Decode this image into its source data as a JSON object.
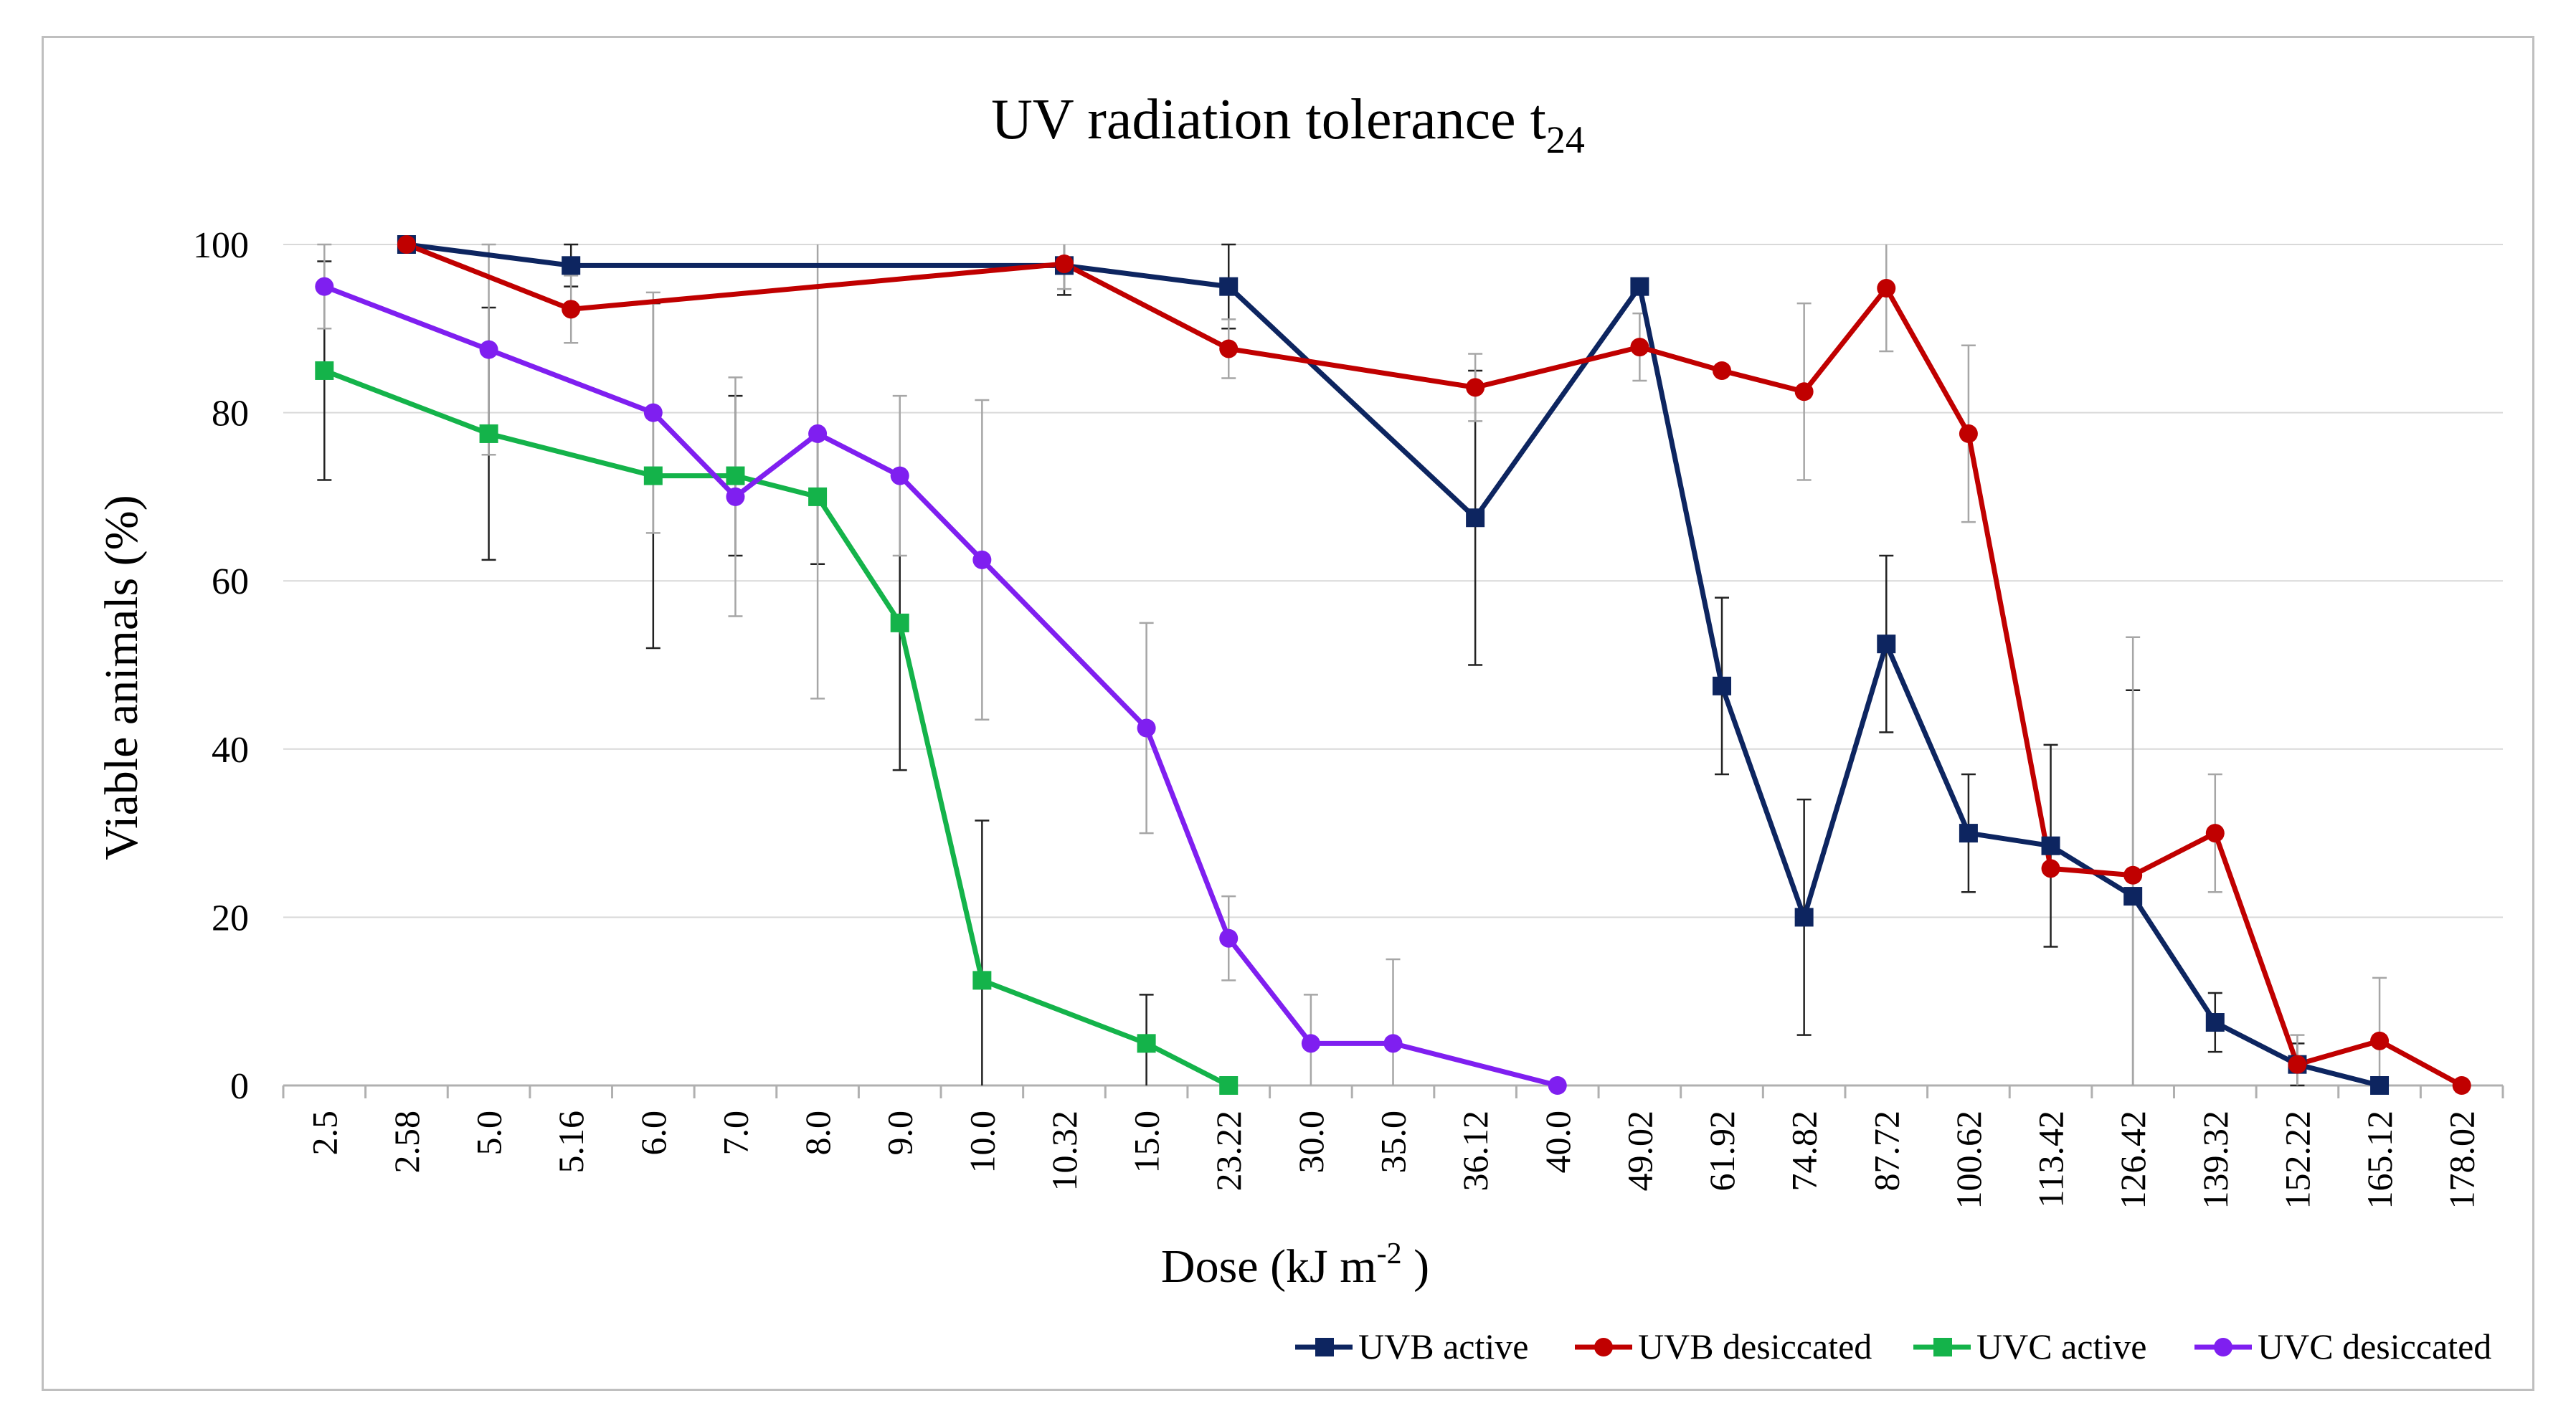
{
  "chart_data": {
    "type": "line",
    "title": "UV radiation tolerance t",
    "title_subscript": "24",
    "xlabel": "Dose (kJ m",
    "xlabel_superscript": "-2",
    "xlabel_suffix": " )",
    "ylabel": "Viable animals (%)",
    "ylim": [
      0,
      100
    ],
    "y_ticks": [
      "0",
      "20",
      "40",
      "60",
      "80",
      "100"
    ],
    "grid": true,
    "legend_position": "bottom-right",
    "categories": [
      "2.5",
      "2.58",
      "5.0",
      "5.16",
      "6.0",
      "7.0",
      "8.0",
      "9.0",
      "10.0",
      "10.32",
      "15.0",
      "23.22",
      "30.0",
      "35.0",
      "36.12",
      "40.0",
      "49.02",
      "61.92",
      "74.82",
      "87.72",
      "100.62",
      "113.42",
      "126.42",
      "139.32",
      "152.22",
      "165.12",
      "178.02"
    ],
    "series": [
      {
        "name": "UVB active",
        "color": "#0d2560",
        "marker": "square",
        "points": [
          {
            "x": "2.58",
            "y": 100,
            "err": 0
          },
          {
            "x": "5.16",
            "y": 97.5,
            "err": 2.5
          },
          {
            "x": "10.32",
            "y": 97.5,
            "err": 3.5
          },
          {
            "x": "23.22",
            "y": 95,
            "err": 5
          },
          {
            "x": "36.12",
            "y": 67.5,
            "err": 17.5
          },
          {
            "x": "49.02",
            "y": 95,
            "err": 0
          },
          {
            "x": "61.92",
            "y": 47.5,
            "err": 10.5
          },
          {
            "x": "74.82",
            "y": 20,
            "err": 14
          },
          {
            "x": "87.72",
            "y": 52.5,
            "err": 10.5
          },
          {
            "x": "100.62",
            "y": 30,
            "err": 7
          },
          {
            "x": "113.42",
            "y": 28.5,
            "err": 12
          },
          {
            "x": "126.42",
            "y": 22.5,
            "err": 24.5
          },
          {
            "x": "139.32",
            "y": 7.5,
            "err": 3.5
          },
          {
            "x": "152.22",
            "y": 2.5,
            "err": 2.5
          },
          {
            "x": "165.12",
            "y": 0,
            "err": 0
          }
        ]
      },
      {
        "name": "UVB desiccated",
        "color": "#c00000",
        "marker": "circle",
        "points": [
          {
            "x": "2.58",
            "y": 100,
            "err": 0
          },
          {
            "x": "5.16",
            "y": 92.3,
            "err": 4
          },
          {
            "x": "10.32",
            "y": 97.7,
            "err": 3
          },
          {
            "x": "23.22",
            "y": 87.6,
            "err": 3.5
          },
          {
            "x": "36.12",
            "y": 83,
            "err": 4
          },
          {
            "x": "49.02",
            "y": 87.8,
            "err": 4
          },
          {
            "x": "61.92",
            "y": 85,
            "err": 0
          },
          {
            "x": "74.82",
            "y": 82.5,
            "err": 10.5
          },
          {
            "x": "87.72",
            "y": 94.8,
            "err": 7.5
          },
          {
            "x": "100.62",
            "y": 77.5,
            "err": 10.5
          },
          {
            "x": "113.42",
            "y": 25.8,
            "err": 0
          },
          {
            "x": "126.42",
            "y": 25,
            "err": 28.3
          },
          {
            "x": "139.32",
            "y": 30,
            "err": 7
          },
          {
            "x": "152.22",
            "y": 2.5,
            "err": 3.5
          },
          {
            "x": "165.12",
            "y": 5.3,
            "err": 7.5
          },
          {
            "x": "178.02",
            "y": 0,
            "err": 0
          }
        ]
      },
      {
        "name": "UVC active",
        "color": "#14b34a",
        "marker": "square",
        "points": [
          {
            "x": "2.5",
            "y": 85,
            "err": 13
          },
          {
            "x": "5.0",
            "y": 77.5,
            "err": 15
          },
          {
            "x": "6.0",
            "y": 72.5,
            "err": 20.5
          },
          {
            "x": "7.0",
            "y": 72.5,
            "err": 9.5
          },
          {
            "x": "8.0",
            "y": 70,
            "err": 8
          },
          {
            "x": "9.0",
            "y": 55,
            "err": 17.5
          },
          {
            "x": "10.0",
            "y": 12.5,
            "err": 19
          },
          {
            "x": "15.0",
            "y": 5,
            "err": 5.8
          },
          {
            "x": "23.22",
            "y": 0,
            "err": 0
          }
        ]
      },
      {
        "name": "UVC desiccated",
        "color": "#7f1ff0",
        "marker": "circle",
        "points": [
          {
            "x": "2.5",
            "y": 95,
            "err": 5
          },
          {
            "x": "5.0",
            "y": 87.5,
            "err": 12.5
          },
          {
            "x": "6.0",
            "y": 80,
            "err": 14.3
          },
          {
            "x": "7.0",
            "y": 70,
            "err": 14.2
          },
          {
            "x": "8.0",
            "y": 77.5,
            "err": 31.5
          },
          {
            "x": "9.0",
            "y": 72.5,
            "err": 9.5
          },
          {
            "x": "10.0",
            "y": 62.5,
            "err": 19
          },
          {
            "x": "15.0",
            "y": 42.5,
            "err": 12.5
          },
          {
            "x": "23.22",
            "y": 17.5,
            "err": 5
          },
          {
            "x": "30.0",
            "y": 5,
            "err": 5.8
          },
          {
            "x": "35.0",
            "y": 5,
            "err": 10
          },
          {
            "x": "40.0",
            "y": 0,
            "err": 0
          }
        ]
      }
    ]
  }
}
